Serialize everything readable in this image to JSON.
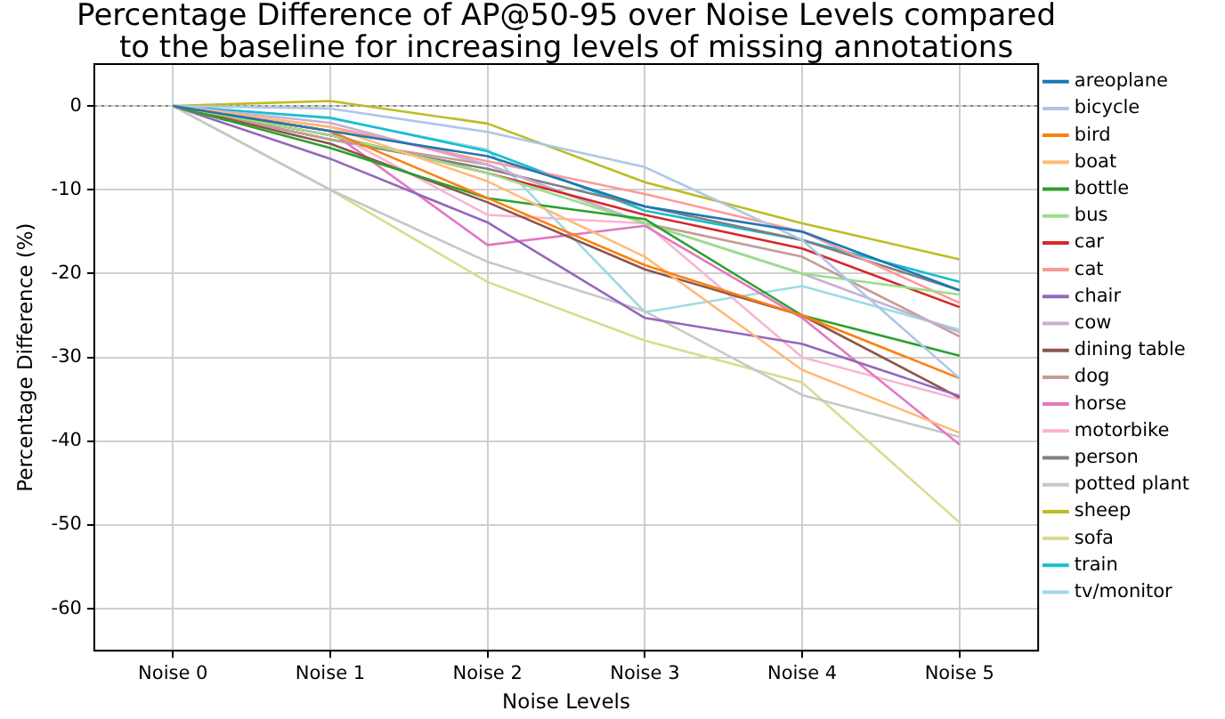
{
  "chart_data": {
    "type": "line",
    "title": "Percentage Difference of AP@50-95 over Noise Levels compared\nto the baseline for increasing levels of missing annotations",
    "xlabel": "Noise Levels",
    "ylabel": "Percentage Difference (%)",
    "categories": [
      "Noise 0",
      "Noise 1",
      "Noise 2",
      "Noise 3",
      "Noise 4",
      "Noise 5"
    ],
    "ylim": [
      -65,
      5
    ],
    "yticks": [
      -60,
      -50,
      -40,
      -30,
      -20,
      -10,
      0
    ],
    "grid": true,
    "legend": "right",
    "marker": "none",
    "line_style": "solid",
    "ref_lines": [
      {
        "axis": "y",
        "value": 0,
        "color": "#808080",
        "line_style": "dotted"
      }
    ],
    "series": [
      {
        "name": "areoplane",
        "color": "#1f77b4",
        "values": [
          0,
          -3,
          -6,
          -12,
          -15,
          -22
        ]
      },
      {
        "name": "bicycle",
        "color": "#aec7e8",
        "values": [
          0,
          -0.3,
          -3.1,
          -7.3,
          -16,
          -32.5
        ]
      },
      {
        "name": "bird",
        "color": "#ff7f0e",
        "values": [
          0,
          -3,
          -11,
          -19,
          -25,
          -32.5
        ]
      },
      {
        "name": "boat",
        "color": "#ffbb78",
        "values": [
          0,
          -2.5,
          -9,
          -18,
          -31.5,
          -39
        ]
      },
      {
        "name": "bottle",
        "color": "#2ca02c",
        "values": [
          0,
          -5,
          -11,
          -13.5,
          -25,
          -29.8
        ]
      },
      {
        "name": "bus",
        "color": "#98df8a",
        "values": [
          0,
          -3.5,
          -8,
          -14,
          -20,
          -22.5
        ]
      },
      {
        "name": "car",
        "color": "#d62728",
        "values": [
          0,
          -3.5,
          -8,
          -13,
          -17,
          -24
        ]
      },
      {
        "name": "cat",
        "color": "#ff9896",
        "values": [
          0,
          -2.5,
          -6.6,
          -10.5,
          -15,
          -23.5
        ]
      },
      {
        "name": "chair",
        "color": "#9467bd",
        "values": [
          0,
          -6.3,
          -13.9,
          -25.3,
          -28.4,
          -34.6
        ]
      },
      {
        "name": "cow",
        "color": "#c5b0d5",
        "values": [
          0,
          -2,
          -7,
          -14,
          -20,
          -27
        ]
      },
      {
        "name": "dining table",
        "color": "#8c564b",
        "values": [
          0,
          -4.5,
          -11.5,
          -19.5,
          -25,
          -34.8
        ]
      },
      {
        "name": "dog",
        "color": "#c49c94",
        "values": [
          0,
          -4,
          -7,
          -14,
          -18,
          -27.5
        ]
      },
      {
        "name": "horse",
        "color": "#e377c2",
        "values": [
          0,
          -3,
          -16.6,
          -14.3,
          -25.3,
          -40.4
        ]
      },
      {
        "name": "motorbike",
        "color": "#f7b6d2",
        "values": [
          0,
          -3,
          -13,
          -14,
          -30,
          -35
        ]
      },
      {
        "name": "person",
        "color": "#7f7f7f",
        "values": [
          0,
          -4,
          -7.5,
          -12,
          -16,
          -22
        ]
      },
      {
        "name": "potted plant",
        "color": "#c7c7c7",
        "values": [
          0,
          -10,
          -18.6,
          -24.5,
          -34.5,
          -39.5
        ]
      },
      {
        "name": "sheep",
        "color": "#bcbd22",
        "values": [
          0,
          0.6,
          -2.1,
          -9.1,
          -14,
          -18.3
        ]
      },
      {
        "name": "sofa",
        "color": "#dbdb8d",
        "values": [
          0,
          -10,
          -21,
          -28,
          -33,
          -49.7
        ]
      },
      {
        "name": "train",
        "color": "#17becf",
        "values": [
          0,
          -1.4,
          -5.4,
          -12.5,
          -16,
          -21
        ]
      },
      {
        "name": "tv/monitor",
        "color": "#9edae5",
        "values": [
          0,
          -1.5,
          -5.2,
          -24.6,
          -21.5,
          -26.7
        ]
      }
    ]
  }
}
